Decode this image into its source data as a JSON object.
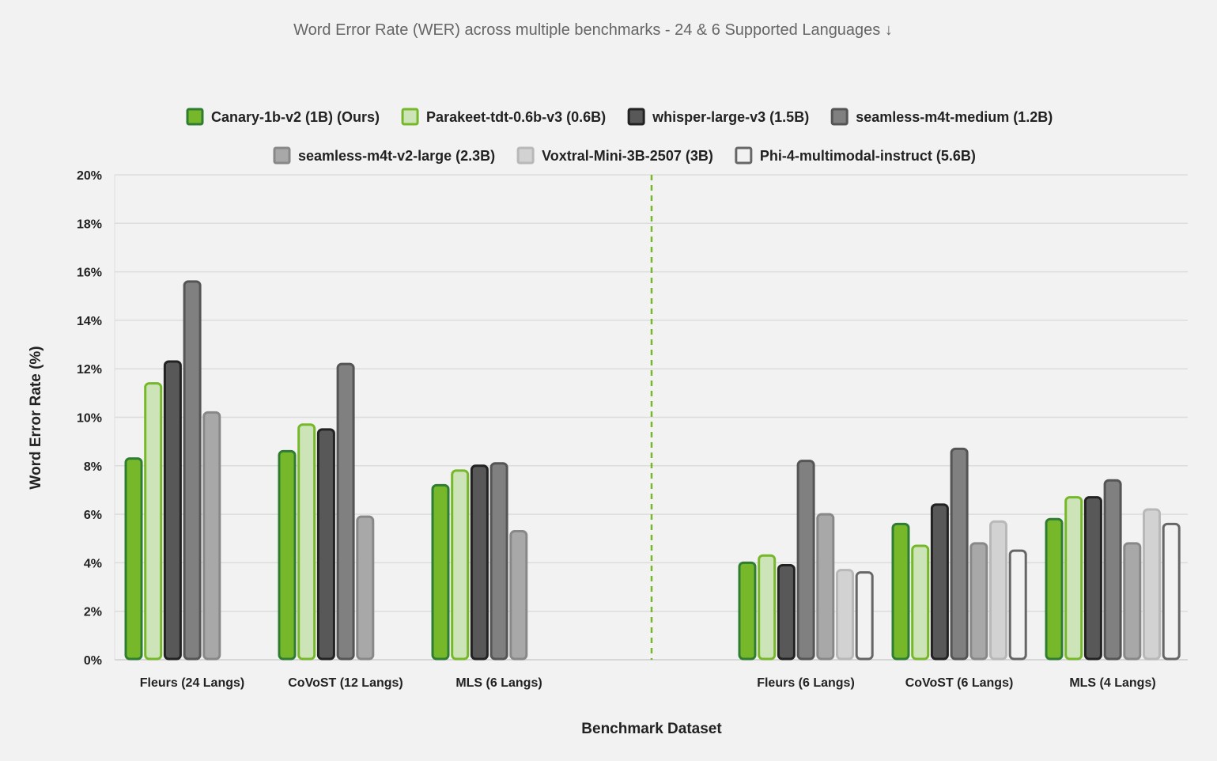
{
  "chart_data": {
    "type": "bar",
    "title": "Word Error Rate (WER) across multiple benchmarks - 24 & 6 Supported Languages ↓",
    "xlabel": "Benchmark Dataset",
    "ylabel": "Word Error Rate (%)",
    "ylim": [
      0,
      20
    ],
    "yticks": [
      "0%",
      "2%",
      "4%",
      "6%",
      "8%",
      "10%",
      "12%",
      "14%",
      "16%",
      "18%",
      "20%"
    ],
    "grid": true,
    "legend_position": "top",
    "divider": {
      "between": "MLS (6 Langs) and Fleurs (6 Langs)",
      "style": "dashed",
      "color": "#76b82a"
    },
    "categories": [
      "Fleurs (24 Langs)",
      "CoVoST (12 Langs)",
      "MLS (6 Langs)",
      "Fleurs (6 Langs)",
      "CoVoST (6 Langs)",
      "MLS (4 Langs)"
    ],
    "series": [
      {
        "name": "Canary-1b-v2 (1B) (Ours)",
        "fill": "#76b82a",
        "stroke": "#2e7d32",
        "values": [
          8.3,
          8.6,
          7.2,
          4.0,
          5.6,
          5.8
        ]
      },
      {
        "name": "Parakeet-tdt-0.6b-v3 (0.6B)",
        "fill": "#cde3b8",
        "stroke": "#76b82a",
        "values": [
          11.4,
          9.7,
          7.8,
          4.3,
          4.7,
          6.7
        ]
      },
      {
        "name": "whisper-large-v3 (1.5B)",
        "fill": "#585858",
        "stroke": "#222222",
        "values": [
          12.3,
          9.5,
          8.0,
          3.9,
          6.4,
          6.7
        ]
      },
      {
        "name": "seamless-m4t-medium (1.2B)",
        "fill": "#808080",
        "stroke": "#555555",
        "values": [
          15.6,
          12.2,
          8.1,
          8.2,
          8.7,
          7.4
        ]
      },
      {
        "name": "seamless-m4t-v2-large (2.3B)",
        "fill": "#a8a8a8",
        "stroke": "#888888",
        "values": [
          10.2,
          5.9,
          5.3,
          6.0,
          4.8,
          4.8
        ]
      },
      {
        "name": "Voxtral-Mini-3B-2507 (3B)",
        "fill": "#d2d2d2",
        "stroke": "#b8b8b8",
        "values": [
          null,
          null,
          null,
          3.7,
          5.7,
          6.2
        ]
      },
      {
        "name": "Phi-4-multimodal-instruct (5.6B)",
        "fill": "#f2f2f2",
        "stroke": "#666666",
        "values": [
          null,
          null,
          null,
          3.6,
          4.5,
          5.6
        ]
      }
    ]
  }
}
